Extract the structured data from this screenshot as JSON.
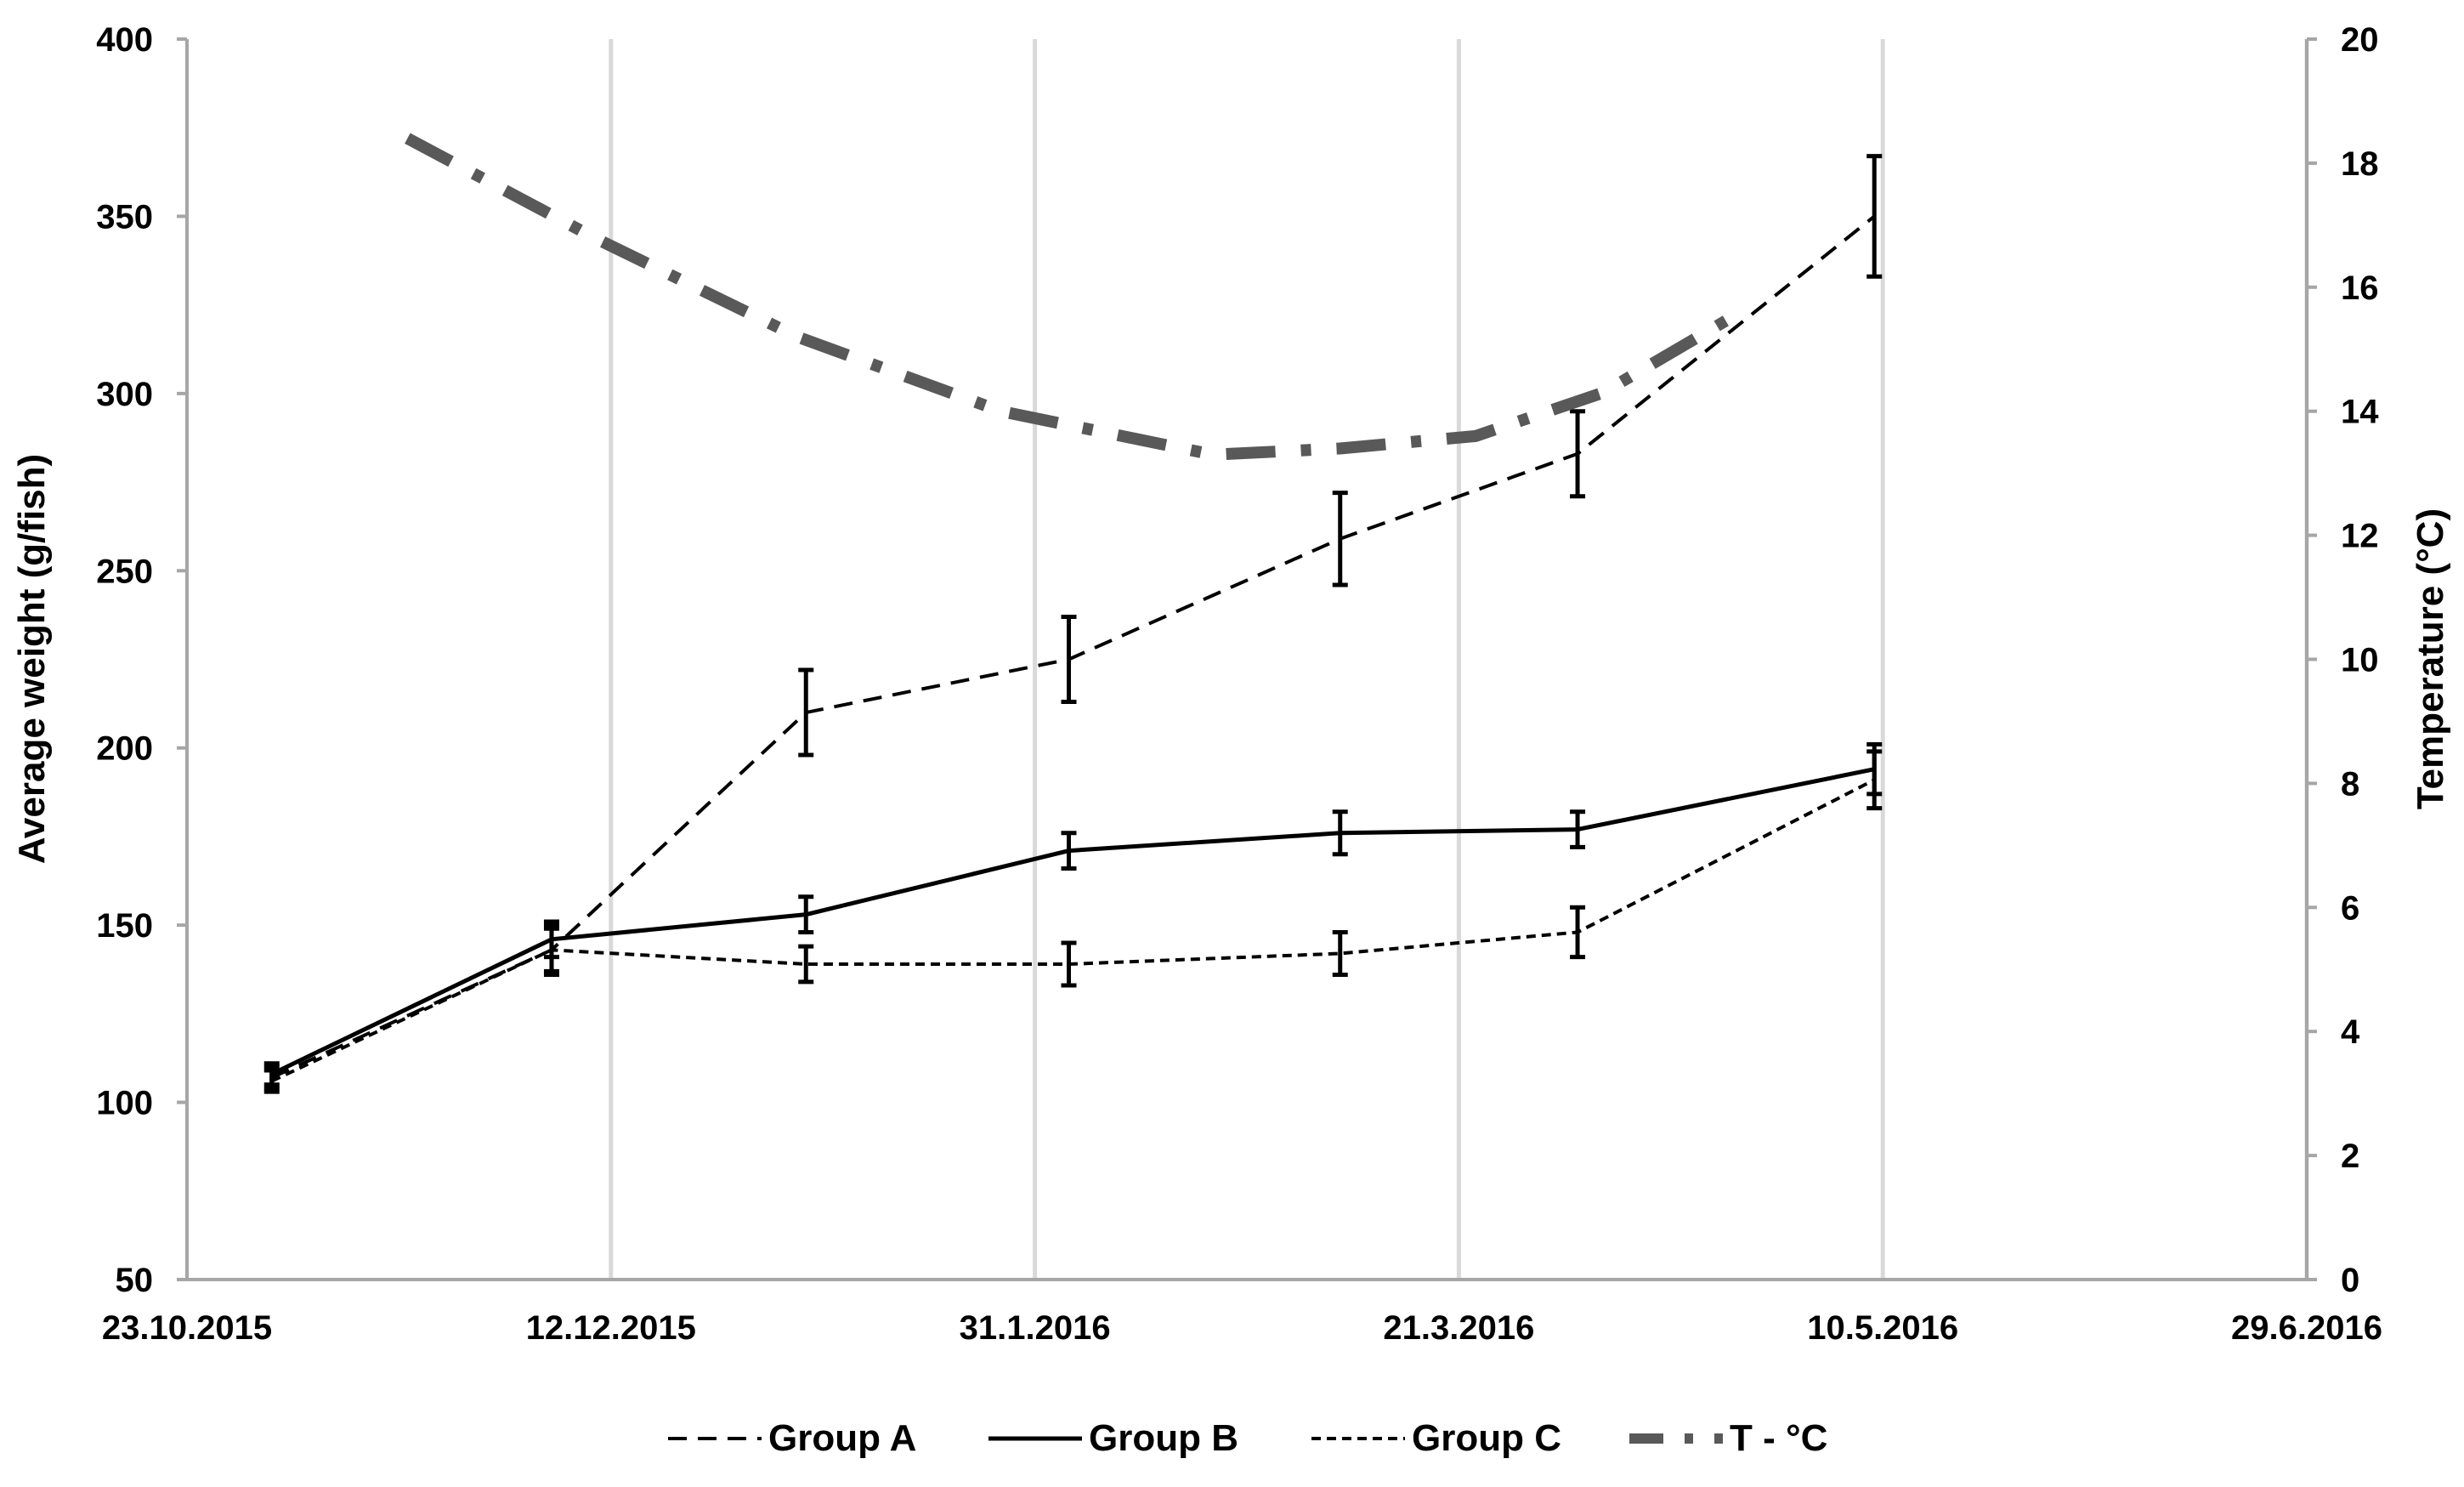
{
  "chart_data": {
    "type": "line",
    "title": "",
    "x_axis": {
      "type": "date",
      "min": "2015-10-23",
      "max": "2016-06-29",
      "tick_labels": [
        "23.10.2015",
        "12.12.2015",
        "31.1.2016",
        "21.3.2016",
        "10.5.2016",
        "29.6.2016"
      ],
      "ticks": [
        "2015-10-23",
        "2015-12-12",
        "2016-01-31",
        "2016-03-21",
        "2016-05-10",
        "2016-06-29"
      ],
      "gridlines": "vertical"
    },
    "y_axis": {
      "label": "Average weight (g/fish)",
      "min": 50,
      "max": 400,
      "step": 50,
      "tick_labels": [
        "50",
        "100",
        "150",
        "200",
        "250",
        "300",
        "350",
        "400"
      ]
    },
    "y2_axis": {
      "label": "Temperature (°C)",
      "min": 0,
      "max": 20,
      "step": 2,
      "tick_labels": [
        "0",
        "2",
        "4",
        "6",
        "8",
        "10",
        "12",
        "14",
        "16",
        "18",
        "20"
      ]
    },
    "series": [
      {
        "name": "Group A",
        "axis": "y",
        "style": "dashed",
        "x": [
          "2015-11-02",
          "2015-12-05",
          "2016-01-04",
          "2016-02-04",
          "2016-03-07",
          "2016-04-04",
          "2016-05-09"
        ],
        "y": [
          107,
          143,
          210,
          225,
          259,
          283,
          350
        ],
        "error": [
          3,
          7,
          12,
          12,
          13,
          12,
          17
        ]
      },
      {
        "name": "Group B",
        "axis": "y",
        "style": "solid",
        "x": [
          "2015-11-02",
          "2015-12-05",
          "2016-01-04",
          "2016-02-04",
          "2016-03-07",
          "2016-04-04",
          "2016-05-09"
        ],
        "y": [
          108,
          146,
          153,
          171,
          176,
          177,
          194
        ],
        "error": [
          3,
          5,
          5,
          5,
          6,
          5,
          7
        ]
      },
      {
        "name": "Group C",
        "axis": "y",
        "style": "short-dashed",
        "x": [
          "2015-11-02",
          "2015-12-05",
          "2016-01-04",
          "2016-02-04",
          "2016-03-07",
          "2016-04-04",
          "2016-05-09"
        ],
        "y": [
          106,
          143,
          139,
          139,
          142,
          148,
          191
        ],
        "error": [
          3,
          6,
          5,
          6,
          6,
          7,
          8
        ]
      },
      {
        "name": "T - °C",
        "axis": "y2",
        "style": "dash-dot",
        "x": [
          "2015-11-18",
          "2015-12-10",
          "2016-01-03",
          "2016-01-27",
          "2016-02-21",
          "2016-03-07",
          "2016-03-23",
          "2016-04-07",
          "2016-04-22"
        ],
        "y": [
          18.4,
          16.8,
          15.2,
          14.0,
          13.3,
          13.4,
          13.6,
          14.3,
          15.5
        ]
      }
    ],
    "legend": {
      "position": "bottom",
      "entries": [
        "Group A",
        "Group B",
        "Group C",
        "T - °C"
      ]
    },
    "colors": {
      "group_a": "#000000",
      "group_b": "#000000",
      "group_c": "#000000",
      "temperature": "#595959",
      "grid": "#d9d9d9",
      "axis": "#a6a6a6"
    },
    "grid": true
  }
}
